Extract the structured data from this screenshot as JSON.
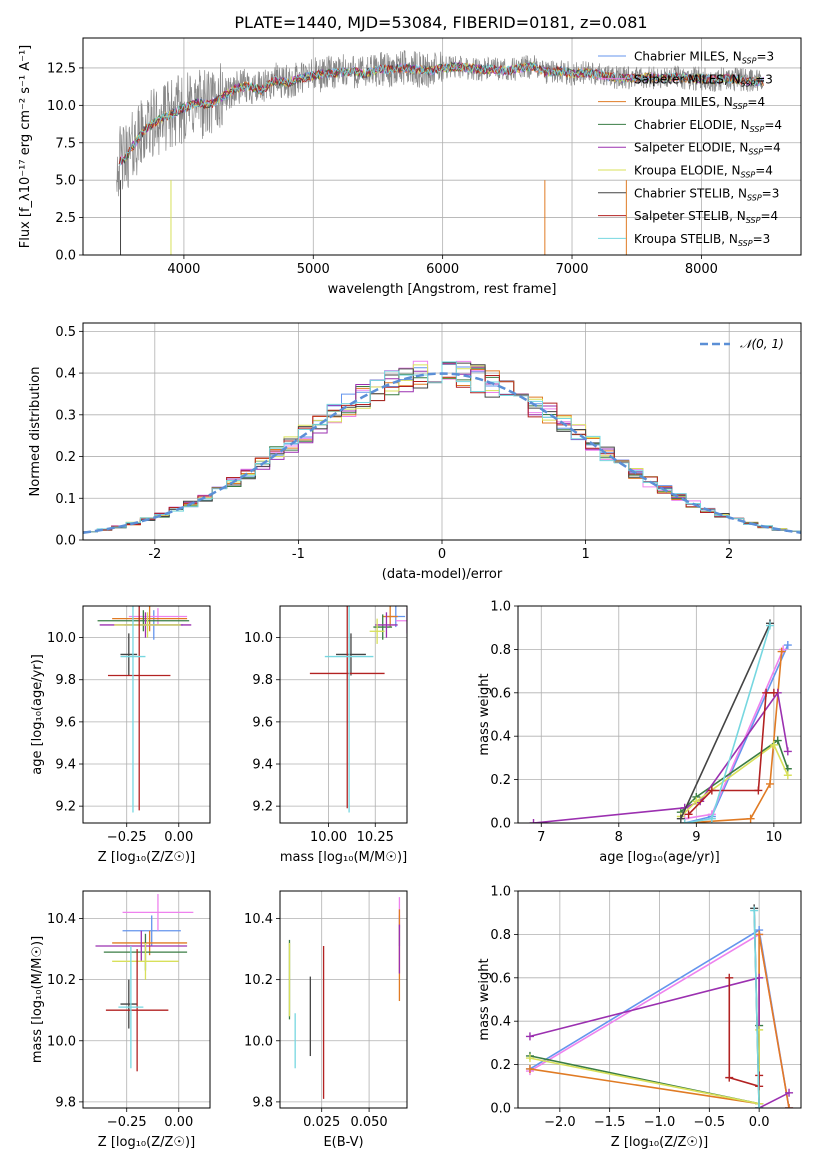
{
  "figure": {
    "title": "PLATE=1440, MJD=53084, FIBERID=0181, z=0.081"
  },
  "series_styles": [
    {
      "name": "Chabrier MILES",
      "nssp": "3",
      "color": "#6495ed"
    },
    {
      "name": "Salpeter MILES",
      "nssp": "3",
      "color": "#ee82ee"
    },
    {
      "name": "Kroupa MILES",
      "nssp": "4",
      "color": "#e07b24"
    },
    {
      "name": "Chabrier ELODIE",
      "nssp": "4",
      "color": "#3a7d44"
    },
    {
      "name": "Salpeter ELODIE",
      "nssp": "4",
      "color": "#9b30b0"
    },
    {
      "name": "Kroupa ELODIE",
      "nssp": "4",
      "color": "#d8e05a"
    },
    {
      "name": "Chabrier STELIB",
      "nssp": "3",
      "color": "#444444"
    },
    {
      "name": "Salpeter STELIB",
      "nssp": "4",
      "color": "#b22222"
    },
    {
      "name": "Kroupa STELIB",
      "nssp": "3",
      "color": "#76d7e0"
    }
  ],
  "chart_data": [
    {
      "id": "spectrum",
      "type": "line",
      "xlabel": "wavelength [Angstrom, rest frame]",
      "ylabel": "Flux [f_λ10⁻¹⁷ erg cm⁻² s⁻¹ A⁻¹]",
      "xlim": [
        3220,
        8770
      ],
      "ylim": [
        0,
        14.5
      ],
      "xticks": [
        4000,
        5000,
        6000,
        7000,
        8000
      ],
      "yticks": [
        0.0,
        2.5,
        5.0,
        7.5,
        10.0,
        12.5
      ],
      "ytick_labels": [
        "0.0",
        "2.5",
        "5.0",
        "7.5",
        "10.0",
        "12.5"
      ],
      "legend": "upper-right",
      "x": [
        3500,
        3550,
        3600,
        3700,
        3800,
        3900,
        4000,
        4100,
        4200,
        4300,
        4400,
        4500,
        4600,
        4700,
        4800,
        4900,
        5000,
        5100,
        5200,
        5300,
        5400,
        5500,
        5600,
        5700,
        5800,
        5900,
        6000,
        6100,
        6200,
        6300,
        6400,
        6500,
        6600,
        6700,
        6800,
        6900,
        7000,
        7100,
        7200,
        7300,
        7400,
        7500,
        7600,
        7700,
        7800,
        7900,
        8000,
        8100,
        8200,
        8300,
        8400,
        8500
      ],
      "y": [
        6.2,
        6.5,
        7.2,
        8.4,
        9.0,
        9.4,
        9.8,
        10.2,
        10.0,
        10.6,
        11.1,
        11.3,
        11.0,
        11.7,
        11.5,
        11.8,
        12.0,
        12.1,
        12.2,
        12.3,
        12.1,
        12.4,
        12.4,
        12.5,
        12.4,
        12.3,
        12.5,
        12.6,
        12.5,
        12.4,
        12.4,
        12.3,
        12.5,
        12.6,
        12.2,
        12.3,
        12.1,
        12.2,
        12.1,
        11.9,
        11.8,
        11.8,
        11.9,
        11.8,
        11.9,
        11.8,
        11.8,
        11.7,
        11.8,
        11.7,
        11.6,
        11.6
      ],
      "data_color": "#888888"
    },
    {
      "id": "residuals",
      "type": "line",
      "xlabel": "(data-model)/error",
      "ylabel": "Normed distribution",
      "xlim": [
        -2.5,
        2.5
      ],
      "ylim": [
        0,
        0.52
      ],
      "xticks": [
        -2,
        -1,
        0,
        1,
        2
      ],
      "yticks": [
        0.0,
        0.1,
        0.2,
        0.3,
        0.4,
        0.5
      ],
      "ytick_labels": [
        "0.0",
        "0.1",
        "0.2",
        "0.3",
        "0.4",
        "0.5"
      ],
      "gaussian_label": "𝒩(0, 1)",
      "gaussian_color": "#5b8fd6",
      "bin_width": 0.1,
      "bin_start": -2.5
    },
    {
      "id": "age-vs-Z",
      "type": "scatter",
      "xlabel": "Z [log₁₀(Z/Z☉)]",
      "ylabel": "age  [log₁₀(age/yr)]",
      "xlim": [
        -0.46,
        0.15
      ],
      "ylim": [
        9.12,
        10.15
      ],
      "xticks": [
        -0.25,
        0.0
      ],
      "xtick_labels": [
        "−0.25",
        "0.00"
      ],
      "yticks": [
        9.2,
        9.4,
        9.6,
        9.8,
        10.0
      ],
      "ytick_labels": [
        "9.2",
        "9.4",
        "9.6",
        "9.8",
        "10.0"
      ],
      "points": [
        {
          "x": -0.12,
          "y": 10.06,
          "xerr": 0.14,
          "yerr": 0.07
        },
        {
          "x": -0.1,
          "y": 10.1,
          "xerr": 0.14,
          "yerr": 0.04
        },
        {
          "x": -0.14,
          "y": 10.09,
          "xerr": 0.18,
          "yerr": 0.06
        },
        {
          "x": -0.17,
          "y": 10.08,
          "xerr": 0.22,
          "yerr": 0.05
        },
        {
          "x": -0.16,
          "y": 10.06,
          "xerr": 0.22,
          "yerr": 0.06
        },
        {
          "x": -0.15,
          "y": 10.06,
          "xerr": 0.16,
          "yerr": 0.06
        },
        {
          "x": -0.24,
          "y": 9.92,
          "xerr": 0.04,
          "yerr": 0.1
        },
        {
          "x": -0.19,
          "y": 9.82,
          "xerr": 0.15,
          "yerr": 0.64
        },
        {
          "x": -0.22,
          "y": 9.91,
          "xerr": 0.06,
          "yerr": 0.74
        }
      ]
    },
    {
      "id": "age-vs-mass",
      "type": "scatter",
      "xlabel": "mass [log₁₀(M/M☉)]",
      "ylabel": "",
      "xlim": [
        9.74,
        10.42
      ],
      "ylim": [
        9.12,
        10.15
      ],
      "xticks": [
        10.0,
        10.25
      ],
      "xtick_labels": [
        "10.00",
        "10.25"
      ],
      "yticks": [
        9.2,
        9.4,
        9.6,
        9.8,
        10.0
      ],
      "ytick_labels": [
        "9.2",
        "9.4",
        "9.6",
        "9.8",
        "10.0"
      ],
      "points": [
        {
          "x": 10.36,
          "y": 10.1,
          "xerr": 0.05,
          "yerr": 0.05
        },
        {
          "x": 10.42,
          "y": 10.08,
          "xerr": 0.06,
          "yerr": 0.06
        },
        {
          "x": 10.33,
          "y": 10.1,
          "xerr": 0.04,
          "yerr": 0.05
        },
        {
          "x": 10.29,
          "y": 10.05,
          "xerr": 0.05,
          "yerr": 0.06
        },
        {
          "x": 10.31,
          "y": 10.06,
          "xerr": 0.06,
          "yerr": 0.06
        },
        {
          "x": 10.26,
          "y": 10.03,
          "xerr": 0.04,
          "yerr": 0.06
        },
        {
          "x": 10.12,
          "y": 9.92,
          "xerr": 0.08,
          "yerr": 0.1
        },
        {
          "x": 10.1,
          "y": 9.83,
          "xerr": 0.2,
          "yerr": 0.64
        },
        {
          "x": 10.11,
          "y": 9.91,
          "xerr": 0.13,
          "yerr": 0.74
        }
      ]
    },
    {
      "id": "weight-vs-age",
      "type": "line",
      "xlabel": "age  [log₁₀(age/yr)]",
      "ylabel": "mass weight",
      "xlim": [
        6.7,
        10.35
      ],
      "ylim": [
        0,
        1.0
      ],
      "xticks": [
        7,
        8,
        9,
        10
      ],
      "yticks": [
        0.0,
        0.2,
        0.4,
        0.6,
        0.8,
        1.0
      ],
      "ytick_labels": [
        "0.0",
        "0.2",
        "0.4",
        "0.6",
        "0.8",
        "1.0"
      ],
      "lines": [
        [
          [
            8.85,
            0.0
          ],
          [
            9.2,
            0.03
          ],
          [
            10.18,
            0.82
          ]
        ],
        [
          [
            8.85,
            0.02
          ],
          [
            9.2,
            0.04
          ],
          [
            10.12,
            0.8
          ]
        ],
        [
          [
            8.85,
            0.0
          ],
          [
            9.7,
            0.02
          ],
          [
            9.95,
            0.18
          ],
          [
            10.1,
            0.79
          ]
        ],
        [
          [
            8.8,
            0.05
          ],
          [
            9.0,
            0.12
          ],
          [
            10.05,
            0.38
          ],
          [
            10.18,
            0.25
          ]
        ],
        [
          [
            6.9,
            0.0
          ],
          [
            8.85,
            0.07
          ],
          [
            9.05,
            0.1
          ],
          [
            10.05,
            0.6
          ],
          [
            10.18,
            0.33
          ]
        ],
        [
          [
            8.8,
            0.03
          ],
          [
            9.0,
            0.1
          ],
          [
            10.0,
            0.36
          ],
          [
            10.18,
            0.22
          ]
        ],
        [
          [
            8.8,
            0.02
          ],
          [
            9.95,
            0.92
          ]
        ],
        [
          [
            8.9,
            0.04
          ],
          [
            9.2,
            0.15
          ],
          [
            9.8,
            0.15
          ],
          [
            9.9,
            0.6
          ],
          [
            10.0,
            0.6
          ]
        ],
        [
          [
            8.85,
            0.0
          ],
          [
            9.2,
            0.02
          ],
          [
            9.95,
            0.91
          ]
        ]
      ]
    },
    {
      "id": "mass-vs-Z",
      "type": "scatter",
      "xlabel": "Z [log₁₀(Z/Z☉)]",
      "ylabel": "mass [log₁₀(M/M☉)]",
      "xlim": [
        -0.46,
        0.15
      ],
      "ylim": [
        9.78,
        10.49
      ],
      "xticks": [
        -0.25,
        0.0
      ],
      "xtick_labels": [
        "−0.25",
        "0.00"
      ],
      "yticks": [
        9.8,
        10.0,
        10.2,
        10.4
      ],
      "ytick_labels": [
        "9.8",
        "10.0",
        "10.2",
        "10.4"
      ],
      "points": [
        {
          "x": -0.13,
          "y": 10.36,
          "xerr": 0.14,
          "yerr": 0.05
        },
        {
          "x": -0.1,
          "y": 10.42,
          "xerr": 0.17,
          "yerr": 0.06
        },
        {
          "x": -0.14,
          "y": 10.32,
          "xerr": 0.18,
          "yerr": 0.04
        },
        {
          "x": -0.16,
          "y": 10.29,
          "xerr": 0.2,
          "yerr": 0.06
        },
        {
          "x": -0.18,
          "y": 10.31,
          "xerr": 0.22,
          "yerr": 0.05
        },
        {
          "x": -0.16,
          "y": 10.26,
          "xerr": 0.16,
          "yerr": 0.06
        },
        {
          "x": -0.24,
          "y": 10.12,
          "xerr": 0.04,
          "yerr": 0.08
        },
        {
          "x": -0.2,
          "y": 10.1,
          "xerr": 0.15,
          "yerr": 0.2
        },
        {
          "x": -0.23,
          "y": 10.11,
          "xerr": 0.06,
          "yerr": 0.2
        }
      ]
    },
    {
      "id": "mass-vs-EBV",
      "type": "scatter",
      "xlabel": "E(B-V)",
      "ylabel": "",
      "xlim": [
        0.003,
        0.07
      ],
      "ylim": [
        9.78,
        10.49
      ],
      "xticks": [
        0.025,
        0.05
      ],
      "xtick_labels": [
        "0.025",
        "0.050"
      ],
      "yticks": [
        9.8,
        10.0,
        10.2,
        10.4
      ],
      "ytick_labels": [
        "9.8",
        "10.0",
        "10.2",
        "10.4"
      ],
      "points": [
        {
          "x": 0.066,
          "y": 10.36,
          "xerr": 0.0,
          "yerr": 0.05
        },
        {
          "x": 0.066,
          "y": 10.42,
          "xerr": 0.0,
          "yerr": 0.05
        },
        {
          "x": 0.066,
          "y": 10.28,
          "xerr": 0.0,
          "yerr": 0.15
        },
        {
          "x": 0.008,
          "y": 10.2,
          "xerr": 0.0,
          "yerr": 0.13
        },
        {
          "x": 0.066,
          "y": 10.3,
          "xerr": 0.0,
          "yerr": 0.08
        },
        {
          "x": 0.008,
          "y": 10.2,
          "xerr": 0.0,
          "yerr": 0.12
        },
        {
          "x": 0.019,
          "y": 10.08,
          "xerr": 0.0,
          "yerr": 0.13
        },
        {
          "x": 0.026,
          "y": 10.06,
          "xerr": 0.0,
          "yerr": 0.25
        },
        {
          "x": 0.011,
          "y": 10.0,
          "xerr": 0.0,
          "yerr": 0.09
        }
      ]
    },
    {
      "id": "weight-vs-Z",
      "type": "line",
      "xlabel": "Z [log₁₀(Z/Z☉)]",
      "ylabel": "mass weight",
      "xlim": [
        -2.42,
        0.42
      ],
      "ylim": [
        0,
        1.0
      ],
      "xticks": [
        -2.0,
        -1.5,
        -1.0,
        -0.5,
        0.0
      ],
      "xtick_labels": [
        "−2.0",
        "−1.5",
        "−1.0",
        "−0.5",
        "0.0"
      ],
      "yticks": [
        0.0,
        0.2,
        0.4,
        0.6,
        0.8,
        1.0
      ],
      "ytick_labels": [
        "0.0",
        "0.2",
        "0.4",
        "0.6",
        "0.8",
        "1.0"
      ],
      "lines": [
        [
          [
            -2.3,
            0.18
          ],
          [
            0.0,
            0.82
          ],
          [
            0.3,
            0.0
          ]
        ],
        [
          [
            -2.3,
            0.17
          ],
          [
            0.0,
            0.8
          ],
          [
            0.3,
            0.0
          ]
        ],
        [
          [
            -2.3,
            0.18
          ],
          [
            0.0,
            0.02
          ],
          [
            0.0,
            0.8
          ],
          [
            0.3,
            0.0
          ]
        ],
        [
          [
            -2.3,
            0.24
          ],
          [
            0.0,
            0.02
          ],
          [
            0.0,
            0.38
          ]
        ],
        [
          [
            -2.3,
            0.33
          ],
          [
            0.0,
            0.6
          ],
          [
            0.0,
            0.0
          ],
          [
            0.3,
            0.07
          ]
        ],
        [
          [
            -2.3,
            0.23
          ],
          [
            0.0,
            0.02
          ],
          [
            0.0,
            0.36
          ]
        ],
        [
          [
            -0.05,
            0.92
          ],
          [
            0.0,
            0.0
          ]
        ],
        [
          [
            -0.3,
            0.6
          ],
          [
            -0.3,
            0.14
          ],
          [
            0.0,
            0.1
          ],
          [
            0.0,
            0.15
          ]
        ],
        [
          [
            -0.05,
            0.91
          ],
          [
            0.0,
            0.0
          ]
        ]
      ]
    }
  ]
}
